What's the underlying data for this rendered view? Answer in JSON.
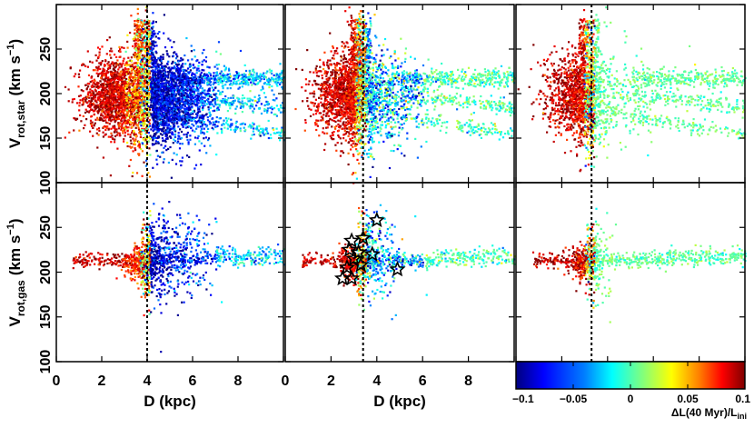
{
  "chart_data": {
    "type": "scatter",
    "title": "",
    "xlabel": "D (kpc)",
    "ylabel_top": "V_rot,star (km s^-1)",
    "ylabel_bottom": "V_rot,gas (km s^-1)",
    "ylabel_top_main": "V",
    "ylabel_top_sub": "rot,star",
    "ylabel_bottom_main": "V",
    "ylabel_bottom_sub": "rot,gas",
    "ylabel_unit": "(km s",
    "ylabel_unit_sup": "−1",
    "ylabel_unit_close": ")",
    "xlim": [
      0,
      10
    ],
    "ylim": [
      100,
      300
    ],
    "x_ticks": [
      "0",
      "2",
      "4",
      "6",
      "8"
    ],
    "y_ticks": [
      "100",
      "150",
      "200",
      "250"
    ],
    "panels": [
      {
        "name": "left",
        "dashed_line_x": 4.0
      },
      {
        "name": "middle",
        "dashed_line_x": 3.4
      },
      {
        "name": "right",
        "dashed_line_x": 3.3
      }
    ],
    "star_markers_middle_gas": [
      {
        "x": 2.5,
        "y": 193
      },
      {
        "x": 2.9,
        "y": 193
      },
      {
        "x": 2.7,
        "y": 205
      },
      {
        "x": 3.0,
        "y": 215
      },
      {
        "x": 2.8,
        "y": 225
      },
      {
        "x": 3.2,
        "y": 222
      },
      {
        "x": 2.9,
        "y": 235
      },
      {
        "x": 3.4,
        "y": 238
      },
      {
        "x": 3.3,
        "y": 208
      },
      {
        "x": 3.8,
        "y": 220
      },
      {
        "x": 4.0,
        "y": 258
      },
      {
        "x": 4.9,
        "y": 203
      }
    ],
    "colorbar": {
      "label": "ΔL(40 Myr)/L",
      "label_sub": "ini",
      "min": -0.1,
      "max": 0.1,
      "ticks": [
        "−0.1",
        "−0.05",
        "0",
        "0.05",
        "0.1"
      ],
      "colors": [
        "#00007f",
        "#0000ff",
        "#007fff",
        "#00ffff",
        "#7fff7f",
        "#ffff00",
        "#ff7f00",
        "#ff0000",
        "#7f0000"
      ]
    }
  }
}
